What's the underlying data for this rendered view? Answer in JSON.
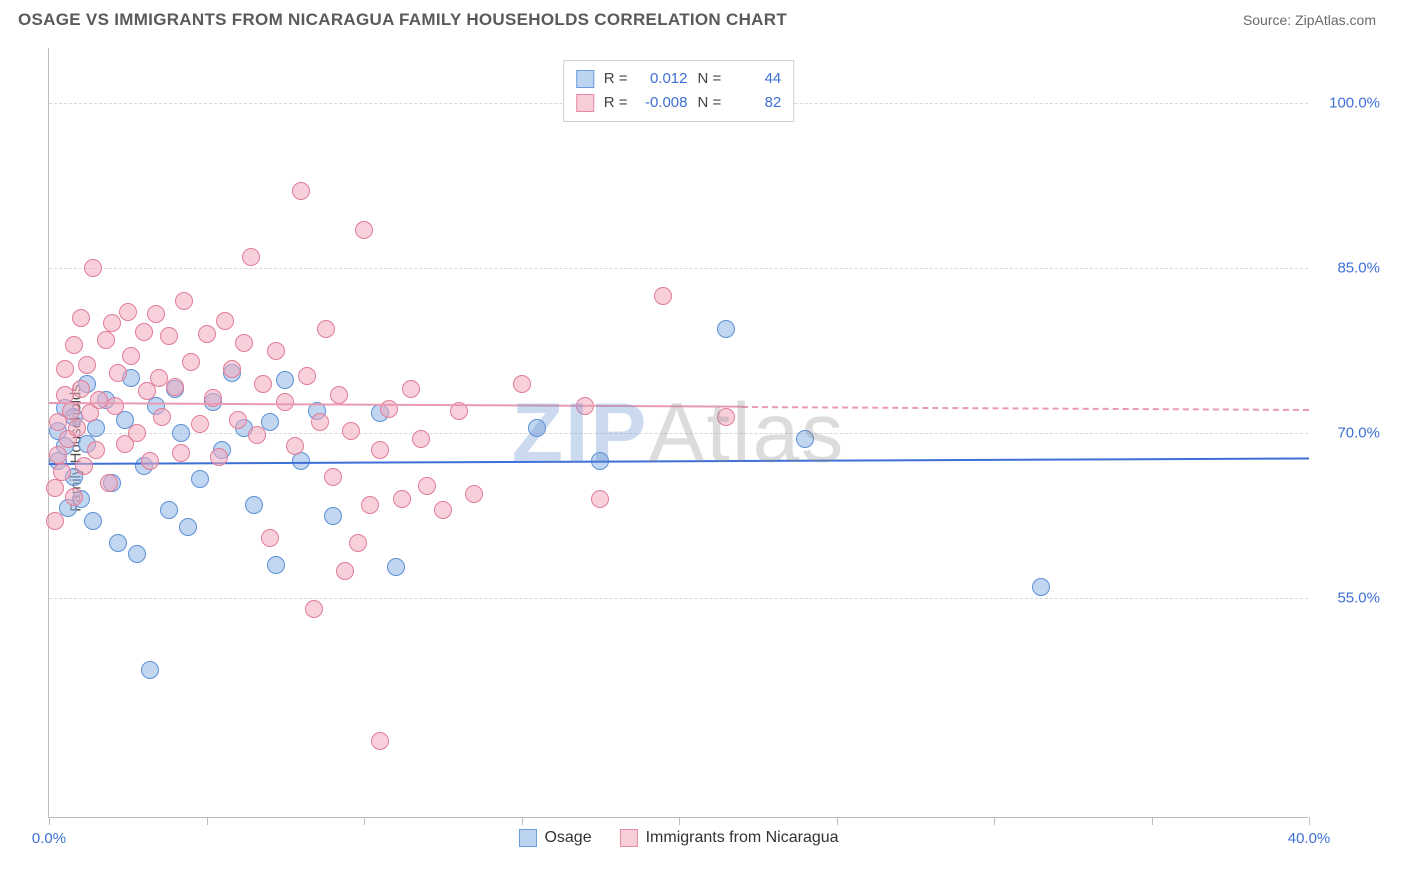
{
  "header": {
    "title": "OSAGE VS IMMIGRANTS FROM NICARAGUA FAMILY HOUSEHOLDS CORRELATION CHART",
    "source": "Source: ZipAtlas.com"
  },
  "chart": {
    "type": "scatter",
    "y_axis_label": "Family Households",
    "background_color": "#ffffff",
    "grid_color": "#d8d8d8",
    "axis_color": "#bdbdbd",
    "tick_label_color": "#3d6fd6",
    "xlim": [
      0,
      40
    ],
    "ylim": [
      35,
      105
    ],
    "y_ticks": [
      55,
      70,
      85,
      100
    ],
    "y_tick_labels": [
      "55.0%",
      "70.0%",
      "85.0%",
      "100.0%"
    ],
    "x_ticks": [
      0,
      5,
      10,
      15,
      20,
      25,
      30,
      35,
      40
    ],
    "x_tick_labels_shown": {
      "0": "0.0%",
      "40": "40.0%"
    },
    "watermark": {
      "part1": "ZIP",
      "part2": "Atlas"
    },
    "legend_top": [
      {
        "swatch_fill": "#bcd4f0",
        "swatch_border": "#6a9de0",
        "r_label": "R =",
        "r_value": "0.012",
        "n_label": "N =",
        "n_value": "44"
      },
      {
        "swatch_fill": "#f7cdd7",
        "swatch_border": "#e68aa2",
        "r_label": "R =",
        "r_value": "-0.008",
        "n_label": "N =",
        "n_value": "82"
      }
    ],
    "legend_bottom": [
      {
        "swatch_fill": "#bcd4f0",
        "swatch_border": "#6a9de0",
        "label": "Osage"
      },
      {
        "swatch_fill": "#f7cdd7",
        "swatch_border": "#e68aa2",
        "label": "Immigrants from Nicaragua"
      }
    ],
    "series": [
      {
        "name": "Osage",
        "marker_fill": "rgba(140,180,230,0.55)",
        "marker_border": "#5d90d6",
        "marker_radius": 9,
        "trend": {
          "color": "#3d6fd6",
          "y_start": 67.3,
          "y_end": 67.8,
          "solid_until_x": 40
        },
        "points": [
          [
            0.3,
            67.5
          ],
          [
            0.3,
            70.2
          ],
          [
            0.5,
            68.8
          ],
          [
            0.5,
            72.3
          ],
          [
            0.6,
            63.2
          ],
          [
            0.8,
            66.0
          ],
          [
            0.8,
            71.5
          ],
          [
            1.0,
            64.0
          ],
          [
            1.2,
            69.0
          ],
          [
            1.2,
            74.5
          ],
          [
            1.4,
            62.0
          ],
          [
            1.5,
            70.5
          ],
          [
            1.8,
            73.0
          ],
          [
            2.0,
            65.5
          ],
          [
            2.2,
            60.0
          ],
          [
            2.4,
            71.2
          ],
          [
            2.6,
            75.0
          ],
          [
            2.8,
            59.0
          ],
          [
            3.0,
            67.0
          ],
          [
            3.2,
            48.5
          ],
          [
            3.4,
            72.5
          ],
          [
            3.8,
            63.0
          ],
          [
            4.0,
            74.0
          ],
          [
            4.2,
            70.0
          ],
          [
            4.4,
            61.5
          ],
          [
            4.8,
            65.8
          ],
          [
            5.2,
            72.8
          ],
          [
            5.5,
            68.5
          ],
          [
            5.8,
            75.5
          ],
          [
            6.2,
            70.5
          ],
          [
            6.5,
            63.5
          ],
          [
            7.0,
            71.0
          ],
          [
            7.2,
            58.0
          ],
          [
            7.5,
            74.8
          ],
          [
            8.0,
            67.5
          ],
          [
            8.5,
            72.0
          ],
          [
            9.0,
            62.5
          ],
          [
            10.5,
            71.8
          ],
          [
            11.0,
            57.8
          ],
          [
            15.5,
            70.5
          ],
          [
            17.5,
            67.5
          ],
          [
            21.5,
            79.5
          ],
          [
            24.0,
            69.5
          ],
          [
            31.5,
            56.0
          ]
        ]
      },
      {
        "name": "Immigrants from Nicaragua",
        "marker_fill": "rgba(240,170,190,0.55)",
        "marker_border": "#e27c98",
        "marker_radius": 9,
        "trend": {
          "color": "#ea9ab2",
          "y_start": 72.8,
          "y_end": 72.2,
          "solid_until_x": 22,
          "dash_after": true
        },
        "points": [
          [
            0.2,
            65.0
          ],
          [
            0.3,
            68.0
          ],
          [
            0.3,
            71.0
          ],
          [
            0.4,
            66.5
          ],
          [
            0.5,
            73.5
          ],
          [
            0.5,
            75.8
          ],
          [
            0.6,
            69.5
          ],
          [
            0.7,
            72.0
          ],
          [
            0.8,
            64.2
          ],
          [
            0.8,
            78.0
          ],
          [
            0.9,
            70.5
          ],
          [
            1.0,
            74.0
          ],
          [
            1.0,
            80.5
          ],
          [
            1.1,
            67.0
          ],
          [
            1.2,
            76.2
          ],
          [
            1.3,
            71.8
          ],
          [
            1.4,
            85.0
          ],
          [
            1.5,
            68.5
          ],
          [
            1.6,
            73.0
          ],
          [
            1.8,
            78.5
          ],
          [
            1.9,
            65.5
          ],
          [
            2.0,
            80.0
          ],
          [
            2.1,
            72.5
          ],
          [
            2.2,
            75.5
          ],
          [
            2.4,
            69.0
          ],
          [
            2.5,
            81.0
          ],
          [
            2.6,
            77.0
          ],
          [
            2.8,
            70.0
          ],
          [
            3.0,
            79.2
          ],
          [
            3.1,
            73.8
          ],
          [
            3.2,
            67.5
          ],
          [
            3.4,
            80.8
          ],
          [
            3.5,
            75.0
          ],
          [
            3.6,
            71.5
          ],
          [
            3.8,
            78.8
          ],
          [
            4.0,
            74.2
          ],
          [
            4.2,
            68.2
          ],
          [
            4.3,
            82.0
          ],
          [
            4.5,
            76.5
          ],
          [
            4.8,
            70.8
          ],
          [
            5.0,
            79.0
          ],
          [
            5.2,
            73.2
          ],
          [
            5.4,
            67.8
          ],
          [
            5.6,
            80.2
          ],
          [
            5.8,
            75.8
          ],
          [
            6.0,
            71.2
          ],
          [
            6.2,
            78.2
          ],
          [
            6.4,
            86.0
          ],
          [
            6.6,
            69.8
          ],
          [
            6.8,
            74.5
          ],
          [
            7.0,
            60.5
          ],
          [
            7.2,
            77.5
          ],
          [
            7.5,
            72.8
          ],
          [
            7.8,
            68.8
          ],
          [
            8.0,
            92.0
          ],
          [
            8.2,
            75.2
          ],
          [
            8.4,
            54.0
          ],
          [
            8.6,
            71.0
          ],
          [
            8.8,
            79.5
          ],
          [
            9.0,
            66.0
          ],
          [
            9.2,
            73.5
          ],
          [
            9.4,
            57.5
          ],
          [
            9.6,
            70.2
          ],
          [
            9.8,
            60.0
          ],
          [
            10.0,
            88.5
          ],
          [
            10.2,
            63.5
          ],
          [
            10.5,
            68.5
          ],
          [
            10.8,
            72.2
          ],
          [
            11.2,
            64.0
          ],
          [
            11.5,
            74.0
          ],
          [
            11.8,
            69.5
          ],
          [
            12.0,
            65.2
          ],
          [
            12.5,
            63.0
          ],
          [
            13.0,
            72.0
          ],
          [
            13.5,
            64.5
          ],
          [
            15.0,
            74.5
          ],
          [
            17.0,
            72.5
          ],
          [
            17.5,
            64.0
          ],
          [
            19.5,
            82.5
          ],
          [
            21.5,
            71.5
          ],
          [
            10.5,
            42.0
          ],
          [
            0.2,
            62.0
          ]
        ]
      }
    ]
  }
}
